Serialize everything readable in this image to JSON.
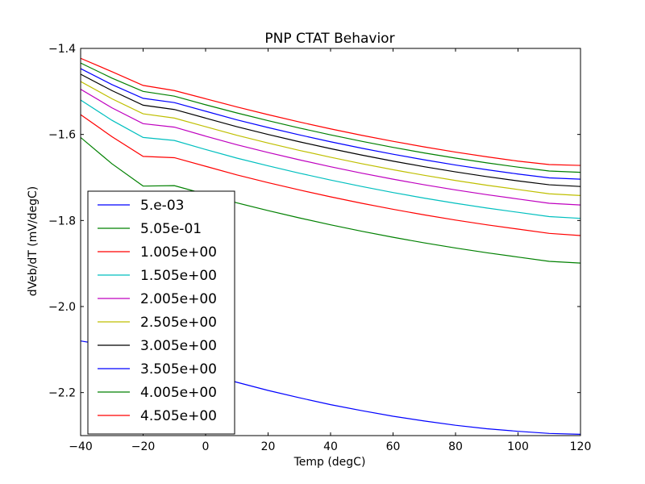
{
  "chart_data": {
    "type": "line",
    "title": "PNP CTAT Behavior",
    "xlabel": "Temp (degC)",
    "ylabel": "dVeb/dT (mV/degC)",
    "xlim": [
      -40,
      120
    ],
    "ylim": [
      -2.3,
      -1.4
    ],
    "xticks": [
      "−40",
      "−20",
      "0",
      "20",
      "40",
      "60",
      "80",
      "100",
      "120"
    ],
    "yticks": [
      "−1.4",
      "−1.6",
      "−1.8",
      "−2.0",
      "−2.2"
    ],
    "grid": false,
    "legend_position": "lower-left",
    "x": [
      -40,
      -30,
      -20,
      -10,
      0,
      10,
      20,
      30,
      40,
      50,
      60,
      70,
      80,
      90,
      100,
      110,
      120
    ],
    "series": [
      {
        "name": "5.e-03",
        "color": "#0000ff",
        "values": [
          -2.08,
          -2.092,
          -2.119,
          -2.138,
          -2.156,
          -2.176,
          -2.195,
          -2.212,
          -2.228,
          -2.242,
          -2.255,
          -2.266,
          -2.276,
          -2.284,
          -2.29,
          -2.295,
          -2.297
        ]
      },
      {
        "name": "5.05e-01",
        "color": "#008000",
        "values": [
          -1.607,
          -1.668,
          -1.72,
          -1.719,
          -1.739,
          -1.759,
          -1.777,
          -1.794,
          -1.81,
          -1.825,
          -1.839,
          -1.852,
          -1.864,
          -1.875,
          -1.885,
          -1.895,
          -1.899
        ]
      },
      {
        "name": "1.005e+00",
        "color": "#ff0000",
        "values": [
          -1.554,
          -1.605,
          -1.651,
          -1.654,
          -1.674,
          -1.694,
          -1.712,
          -1.729,
          -1.745,
          -1.76,
          -1.774,
          -1.787,
          -1.799,
          -1.81,
          -1.82,
          -1.83,
          -1.835
        ]
      },
      {
        "name": "1.505e+00",
        "color": "#00bfbf",
        "values": [
          -1.52,
          -1.567,
          -1.607,
          -1.614,
          -1.635,
          -1.655,
          -1.673,
          -1.69,
          -1.706,
          -1.721,
          -1.735,
          -1.748,
          -1.76,
          -1.771,
          -1.781,
          -1.791,
          -1.795
        ]
      },
      {
        "name": "2.005e+00",
        "color": "#bf00bf",
        "values": [
          -1.495,
          -1.538,
          -1.575,
          -1.583,
          -1.604,
          -1.624,
          -1.642,
          -1.659,
          -1.675,
          -1.69,
          -1.704,
          -1.717,
          -1.729,
          -1.74,
          -1.75,
          -1.76,
          -1.764
        ]
      },
      {
        "name": "2.505e+00",
        "color": "#bfbf00",
        "values": [
          -1.477,
          -1.517,
          -1.552,
          -1.562,
          -1.582,
          -1.602,
          -1.62,
          -1.637,
          -1.653,
          -1.668,
          -1.682,
          -1.695,
          -1.707,
          -1.718,
          -1.728,
          -1.738,
          -1.742
        ]
      },
      {
        "name": "3.005e+00",
        "color": "#000000",
        "values": [
          -1.46,
          -1.498,
          -1.532,
          -1.542,
          -1.562,
          -1.582,
          -1.6,
          -1.617,
          -1.633,
          -1.648,
          -1.662,
          -1.675,
          -1.687,
          -1.698,
          -1.708,
          -1.717,
          -1.721
        ]
      },
      {
        "name": "3.505e+00",
        "color": "#0000ff",
        "values": [
          -1.447,
          -1.484,
          -1.516,
          -1.526,
          -1.546,
          -1.566,
          -1.584,
          -1.601,
          -1.617,
          -1.632,
          -1.646,
          -1.659,
          -1.671,
          -1.682,
          -1.692,
          -1.701,
          -1.704
        ]
      },
      {
        "name": "4.005e+00",
        "color": "#008000",
        "values": [
          -1.434,
          -1.469,
          -1.5,
          -1.511,
          -1.531,
          -1.55,
          -1.568,
          -1.585,
          -1.601,
          -1.616,
          -1.63,
          -1.643,
          -1.655,
          -1.666,
          -1.676,
          -1.685,
          -1.688
        ]
      },
      {
        "name": "4.505e+00",
        "color": "#ff0000",
        "values": [
          -1.423,
          -1.454,
          -1.486,
          -1.498,
          -1.517,
          -1.536,
          -1.554,
          -1.571,
          -1.587,
          -1.602,
          -1.616,
          -1.629,
          -1.641,
          -1.652,
          -1.662,
          -1.67,
          -1.672
        ]
      }
    ]
  }
}
